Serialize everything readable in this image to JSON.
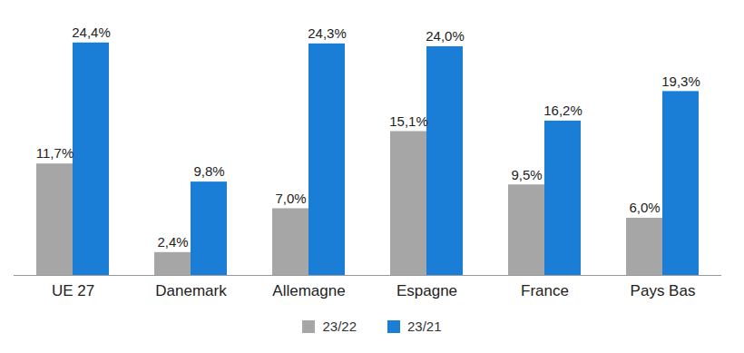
{
  "chart_data": {
    "type": "bar",
    "categories": [
      "UE 27",
      "Danemark",
      "Allemagne",
      "Espagne",
      "France",
      "Pays Bas"
    ],
    "series": [
      {
        "name": "23/22",
        "color": "#a6a6a6",
        "values": [
          11.7,
          2.4,
          7.0,
          15.1,
          9.5,
          6.0
        ],
        "value_labels": [
          "11,7%",
          "2,4%",
          "7,0%",
          "15,1%",
          "9,5%",
          "6,0%"
        ]
      },
      {
        "name": "23/21",
        "color": "#1b7ed6",
        "values": [
          24.4,
          9.8,
          24.3,
          24.0,
          16.2,
          19.3
        ],
        "value_labels": [
          "24,4%",
          "9,8%",
          "24,3%",
          "24,0%",
          "16,2%",
          "19,3%"
        ]
      }
    ],
    "ylim": [
      0,
      26
    ],
    "data_labels": true,
    "tick_labels": "x",
    "legend": "bottom",
    "grid": false
  }
}
